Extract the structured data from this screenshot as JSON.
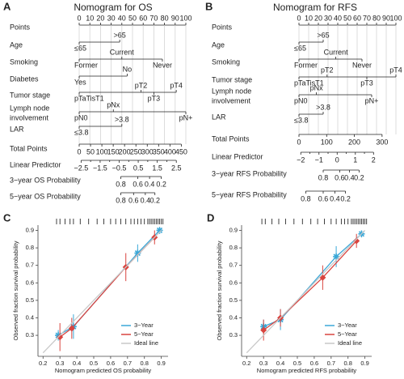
{
  "nomograms": [
    {
      "letter": "A",
      "title": "Nomogram for OS",
      "points": {
        "label": "Points",
        "ticks": [
          0,
          10,
          20,
          30,
          40,
          50,
          60,
          70,
          80,
          90,
          100
        ]
      },
      "variables": [
        {
          "label": "Age",
          "levels": [
            {
              "name": "≤65",
              "points": 0
            },
            {
              "name": ">65",
              "points": 38
            }
          ]
        },
        {
          "label": "Smoking",
          "levels": [
            {
              "name": "Former",
              "points": 0
            },
            {
              "name": "Current",
              "points": 40
            },
            {
              "name": "Never",
              "points": 78
            }
          ]
        },
        {
          "label": "Diabetes",
          "levels": [
            {
              "name": "Yes",
              "points": 0
            },
            {
              "name": "No",
              "points": 45
            }
          ]
        },
        {
          "label": "Tumor stage",
          "levels": [
            {
              "name": "pTaTisT1",
              "points": 0
            },
            {
              "name": "pT2",
              "points": 58
            },
            {
              "name": "pT3",
              "points": 70
            },
            {
              "name": "pT4",
              "points": 91
            }
          ]
        },
        {
          "label": [
            "Lymph node",
            "involvement"
          ],
          "levels": [
            {
              "name": "pN0",
              "points": 0
            },
            {
              "name": "pNx",
              "points": 32
            },
            {
              "name": "pN+",
              "points": 100
            }
          ]
        },
        {
          "label": "LAR",
          "levels": [
            {
              "name": "≤3.8",
              "points": 0
            },
            {
              "name": ">3.8",
              "points": 40
            }
          ]
        }
      ],
      "total_points": {
        "label": "Total Points",
        "range": [
          0,
          470
        ],
        "ticks": [
          0,
          50,
          100,
          150,
          200,
          250,
          300,
          350,
          400,
          450
        ]
      },
      "linear_predictor": {
        "label": "Linear Predictor",
        "range": [
          -2.6,
          3.0
        ],
        "ticks": [
          {
            "value": -2.5,
            "label": "−2.5"
          },
          {
            "value": -1.5,
            "label": "−1.5"
          },
          {
            "value": -0.5,
            "label": "−0.5"
          },
          0.5,
          1.5,
          2.5
        ],
        "minor_ticks": [
          -2,
          -1,
          0,
          1,
          2
        ]
      },
      "probabilities": [
        {
          "label": "3−year OS Probability",
          "ticks": [
            0.8,
            0.6,
            0.4,
            0.2
          ],
          "tick_points": [
            39,
            55,
            66,
            77
          ]
        },
        {
          "label": "5−year OS Probability",
          "ticks": [
            0.8,
            0.6,
            0.4,
            0.2
          ],
          "tick_points": [
            39,
            51,
            62,
            71
          ]
        }
      ]
    },
    {
      "letter": "B",
      "title": "Nomogram for RFS",
      "points": {
        "label": "Points",
        "ticks": [
          0,
          10,
          20,
          30,
          40,
          50,
          60,
          70,
          80,
          90,
          100
        ]
      },
      "variables": [
        {
          "label": "Age",
          "levels": [
            {
              "name": "≤65",
              "points": 0
            },
            {
              "name": ">65",
              "points": 25
            }
          ]
        },
        {
          "label": "Smoking",
          "levels": [
            {
              "name": "Former",
              "points": 0
            },
            {
              "name": "Current",
              "points": 38
            },
            {
              "name": "Never",
              "points": 65
            }
          ]
        },
        {
          "label": "Tumor stage",
          "levels": [
            {
              "name": "pTaTisT1",
              "points": 0
            },
            {
              "name": "pT2",
              "points": 29
            },
            {
              "name": "pT3",
              "points": 70
            },
            {
              "name": "pT4",
              "points": 100
            }
          ]
        },
        {
          "label": [
            "Lymph node",
            "involvement"
          ],
          "levels": [
            {
              "name": "pN0",
              "points": 0
            },
            {
              "name": "pNx",
              "points": 18
            },
            {
              "name": "pN+",
              "points": 75
            }
          ]
        },
        {
          "label": "LAR",
          "levels": [
            {
              "name": "≤3.8",
              "points": 0
            },
            {
              "name": ">3.8",
              "points": 25
            }
          ]
        }
      ],
      "total_points": {
        "label": "Total Points",
        "range": [
          0,
          350
        ],
        "ticks": [
          0,
          100,
          200,
          300
        ]
      },
      "linear_predictor": {
        "label": "Linear Predictor",
        "range": [
          -2.1,
          3.23
        ],
        "ticks": [
          {
            "value": -2,
            "label": "−2"
          },
          {
            "value": -1,
            "label": "−1"
          },
          0,
          1,
          2
        ],
        "minor_ticks": [
          -1.5,
          -0.5,
          0.5,
          1.5
        ]
      },
      "probabilities": [
        {
          "label": "3−year RFS Probability",
          "ticks": [
            0.8,
            0.6,
            0.4,
            0.2
          ],
          "tick_points": [
            25,
            42,
            52,
            62
          ]
        },
        {
          "label": "5−year RFS Probability",
          "ticks": [
            0.8,
            0.6,
            0.4,
            0.2
          ],
          "tick_points": [
            7,
            25,
            37,
            48
          ]
        }
      ]
    }
  ],
  "chart_data": [
    {
      "type": "calibration",
      "letter": "C",
      "x_label": "Nomogram predicted OS probability",
      "y_label": "Observed fraction survival probability",
      "xlim": [
        0.17,
        0.94
      ],
      "ylim": [
        0.18,
        0.93
      ],
      "xticks": [
        0.2,
        0.3,
        0.4,
        0.5,
        0.6,
        0.7,
        0.8,
        0.9
      ],
      "yticks": [
        0.3,
        0.4,
        0.5,
        0.6,
        0.7,
        0.8,
        0.9
      ],
      "rug": [
        0.28,
        0.3,
        0.33,
        0.36,
        0.38,
        0.42,
        0.47,
        0.52,
        0.56,
        0.6,
        0.63,
        0.66,
        0.69,
        0.72,
        0.74,
        0.76,
        0.78,
        0.8,
        0.82,
        0.83,
        0.84,
        0.85,
        0.86,
        0.87,
        0.88,
        0.89,
        0.9,
        0.91
      ],
      "series": [
        {
          "name": "3−Year",
          "color": "#3aa8d8",
          "marker": "star",
          "x": [
            0.29,
            0.38,
            0.76,
            0.89
          ],
          "y": [
            0.3,
            0.35,
            0.77,
            0.9
          ],
          "errors": [
            0.03,
            0.07,
            0.05,
            0.02
          ]
        },
        {
          "name": "5−Year",
          "color": "#d9443f",
          "marker": "diamond",
          "x": [
            0.3,
            0.37,
            0.69,
            0.86
          ],
          "y": [
            0.29,
            0.34,
            0.69,
            0.86
          ],
          "errors": [
            0.08,
            0.06,
            0.08,
            0.04
          ]
        },
        {
          "name": "Ideal line",
          "color": "#c8c8c8",
          "x": [
            0.2,
            0.9
          ],
          "y": [
            0.2,
            0.9
          ]
        }
      ]
    },
    {
      "type": "calibration",
      "letter": "D",
      "x_label": "Nomogram predicted RFS probability",
      "y_label": "Observed fraction survival probability",
      "xlim": [
        0.17,
        0.94
      ],
      "ylim": [
        0.18,
        0.93
      ],
      "xticks": [
        0.2,
        0.3,
        0.4,
        0.5,
        0.6,
        0.7,
        0.8,
        0.9
      ],
      "yticks": [
        0.3,
        0.4,
        0.5,
        0.6,
        0.7,
        0.8,
        0.9
      ],
      "rug": [
        0.29,
        0.31,
        0.35,
        0.39,
        0.43,
        0.48,
        0.53,
        0.58,
        0.62,
        0.66,
        0.7,
        0.73,
        0.76,
        0.78,
        0.8,
        0.82,
        0.83,
        0.84,
        0.85,
        0.86,
        0.87,
        0.88,
        0.89,
        0.9,
        0.91
      ],
      "series": [
        {
          "name": "3−Year",
          "color": "#3aa8d8",
          "marker": "star",
          "x": [
            0.3,
            0.4,
            0.73,
            0.88
          ],
          "y": [
            0.35,
            0.39,
            0.75,
            0.88
          ],
          "errors": [
            0.04,
            0.06,
            0.06,
            0.02
          ]
        },
        {
          "name": "5−Year",
          "color": "#d9443f",
          "marker": "diamond",
          "x": [
            0.3,
            0.4,
            0.65,
            0.85
          ],
          "y": [
            0.33,
            0.4,
            0.63,
            0.84
          ],
          "errors": [
            0.06,
            0.05,
            0.07,
            0.04
          ]
        },
        {
          "name": "Ideal line",
          "color": "#c8c8c8",
          "x": [
            0.2,
            0.9
          ],
          "y": [
            0.2,
            0.9
          ]
        }
      ]
    }
  ]
}
